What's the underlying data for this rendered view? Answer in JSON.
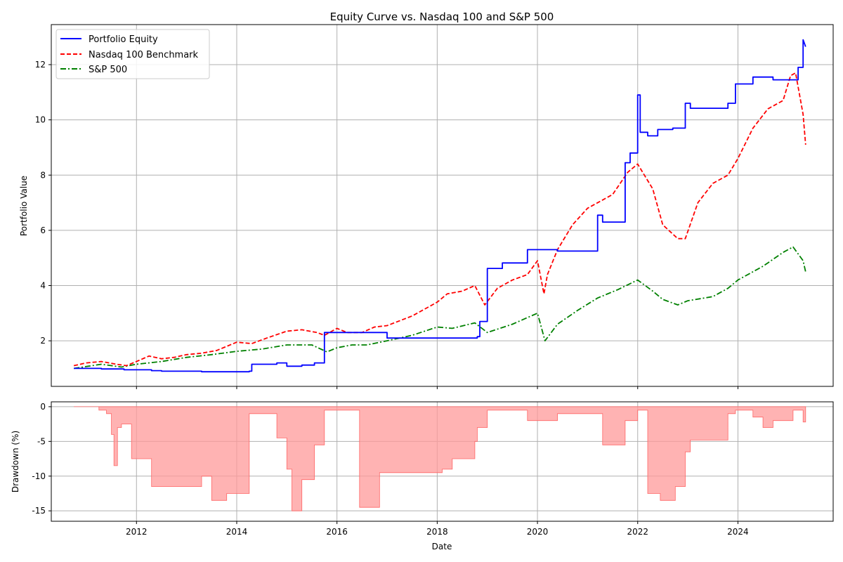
{
  "chart_data": [
    {
      "type": "line",
      "title": "Equity Curve vs. Nasdaq 100 and S&P 500",
      "xlabel": "",
      "ylabel": "Portfolio Value",
      "xlim": [
        2010.3,
        2025.9
      ],
      "ylim": [
        0.35,
        13.45
      ],
      "yticks": [
        2,
        4,
        6,
        8,
        10,
        12
      ],
      "grid": true,
      "legend_position": "top-left",
      "series": [
        {
          "name": "Portfolio Equity",
          "color": "#0000ff",
          "style": "solid",
          "x": [
            2010.75,
            2011.3,
            2011.3,
            2011.75,
            2011.75,
            2012.3,
            2012.3,
            2012.5,
            2012.5,
            2013.3,
            2013.3,
            2014.25,
            2014.25,
            2014.3,
            2014.3,
            2014.8,
            2014.8,
            2015.0,
            2015.0,
            2015.3,
            2015.3,
            2015.55,
            2015.55,
            2015.75,
            2015.75,
            2016.45,
            2016.45,
            2017.0,
            2017.0,
            2018.8,
            2018.8,
            2018.85,
            2018.85,
            2019.0,
            2019.0,
            2019.3,
            2019.3,
            2019.8,
            2019.8,
            2020.4,
            2020.4,
            2021.2,
            2021.2,
            2021.3,
            2021.3,
            2021.75,
            2021.75,
            2021.85,
            2021.85,
            2022.0,
            2022.0,
            2022.05,
            2022.05,
            2022.2,
            2022.2,
            2022.4,
            2022.4,
            2022.7,
            2022.7,
            2022.95,
            2022.95,
            2023.05,
            2023.05,
            2023.8,
            2023.8,
            2023.95,
            2023.95,
            2024.3,
            2024.3,
            2024.7,
            2024.7,
            2025.2,
            2025.2,
            2025.3,
            2025.3,
            2025.35
          ],
          "values": [
            1.0,
            1.0,
            0.98,
            0.98,
            0.95,
            0.95,
            0.92,
            0.92,
            0.9,
            0.9,
            0.88,
            0.88,
            0.9,
            0.9,
            1.15,
            1.15,
            1.2,
            1.2,
            1.08,
            1.08,
            1.12,
            1.12,
            1.2,
            1.2,
            2.3,
            2.3,
            2.3,
            2.3,
            2.1,
            2.1,
            2.15,
            2.15,
            2.7,
            2.7,
            4.62,
            4.62,
            4.82,
            4.82,
            5.3,
            5.3,
            5.25,
            5.25,
            6.55,
            6.55,
            6.3,
            6.3,
            8.45,
            8.45,
            8.8,
            8.8,
            10.9,
            10.9,
            9.55,
            9.55,
            9.42,
            9.42,
            9.65,
            9.65,
            9.7,
            9.7,
            10.6,
            10.6,
            10.42,
            10.42,
            10.6,
            10.6,
            11.3,
            11.3,
            11.55,
            11.55,
            11.45,
            11.45,
            11.9,
            11.9,
            12.9,
            12.65
          ]
        },
        {
          "name": "Nasdaq 100 Benchmark",
          "color": "#ff0000",
          "style": "dashed",
          "x": [
            2010.75,
            2011.0,
            2011.3,
            2011.6,
            2011.8,
            2012.0,
            2012.25,
            2012.5,
            2012.75,
            2013.0,
            2013.3,
            2013.6,
            2014.0,
            2014.3,
            2014.6,
            2015.0,
            2015.3,
            2015.6,
            2015.75,
            2016.0,
            2016.2,
            2016.5,
            2016.75,
            2017.0,
            2017.5,
            2018.0,
            2018.2,
            2018.5,
            2018.75,
            2018.95,
            2019.2,
            2019.5,
            2019.8,
            2020.0,
            2020.13,
            2020.2,
            2020.4,
            2020.7,
            2021.0,
            2021.2,
            2021.5,
            2021.8,
            2022.0,
            2022.3,
            2022.5,
            2022.8,
            2022.95,
            2023.2,
            2023.5,
            2023.8,
            2024.0,
            2024.3,
            2024.6,
            2024.9,
            2025.05,
            2025.15,
            2025.3,
            2025.35
          ],
          "values": [
            1.1,
            1.2,
            1.25,
            1.15,
            1.1,
            1.25,
            1.45,
            1.35,
            1.4,
            1.5,
            1.55,
            1.65,
            1.95,
            1.9,
            2.1,
            2.35,
            2.4,
            2.3,
            2.2,
            2.45,
            2.3,
            2.3,
            2.5,
            2.55,
            2.9,
            3.4,
            3.7,
            3.8,
            4.0,
            3.3,
            3.9,
            4.2,
            4.4,
            4.9,
            3.7,
            4.4,
            5.3,
            6.2,
            6.8,
            7.0,
            7.3,
            8.1,
            8.4,
            7.5,
            6.2,
            5.7,
            5.7,
            7.0,
            7.7,
            8.0,
            8.6,
            9.7,
            10.4,
            10.7,
            11.6,
            11.7,
            10.2,
            9.1
          ]
        },
        {
          "name": "S&P 500",
          "color": "#008000",
          "style": "dashdot",
          "x": [
            2010.75,
            2011.3,
            2011.7,
            2012.0,
            2012.5,
            2013.0,
            2013.5,
            2014.0,
            2014.5,
            2015.0,
            2015.5,
            2015.8,
            2016.0,
            2016.3,
            2016.6,
            2017.0,
            2017.5,
            2018.0,
            2018.3,
            2018.75,
            2019.0,
            2019.5,
            2020.0,
            2020.15,
            2020.4,
            2020.8,
            2021.2,
            2021.6,
            2022.0,
            2022.3,
            2022.5,
            2022.8,
            2023.0,
            2023.5,
            2023.8,
            2024.0,
            2024.5,
            2024.9,
            2025.1,
            2025.3,
            2025.35
          ],
          "values": [
            1.0,
            1.15,
            1.05,
            1.15,
            1.25,
            1.4,
            1.5,
            1.62,
            1.7,
            1.85,
            1.85,
            1.6,
            1.75,
            1.85,
            1.85,
            2.0,
            2.2,
            2.5,
            2.45,
            2.65,
            2.3,
            2.6,
            3.0,
            2.0,
            2.6,
            3.1,
            3.55,
            3.85,
            4.2,
            3.8,
            3.5,
            3.3,
            3.45,
            3.6,
            3.9,
            4.2,
            4.7,
            5.2,
            5.4,
            4.9,
            4.5
          ]
        }
      ]
    },
    {
      "type": "area",
      "title": "",
      "xlabel": "Date",
      "ylabel": "Drawdown (%)",
      "xlim": [
        2010.3,
        2025.9
      ],
      "ylim": [
        -16.5,
        0.7
      ],
      "yticks": [
        0,
        -5,
        -10,
        -15
      ],
      "xticks": [
        2012,
        2014,
        2016,
        2018,
        2020,
        2022,
        2024
      ],
      "grid": true,
      "series": [
        {
          "name": "Drawdown",
          "color": "#ff9999",
          "x": [
            2010.75,
            2011.25,
            2011.25,
            2011.4,
            2011.4,
            2011.5,
            2011.5,
            2011.55,
            2011.55,
            2011.62,
            2011.62,
            2011.7,
            2011.7,
            2011.78,
            2011.78,
            2011.9,
            2011.9,
            2012.3,
            2012.3,
            2012.5,
            2012.5,
            2013.3,
            2013.3,
            2013.5,
            2013.5,
            2013.8,
            2013.8,
            2014.25,
            2014.25,
            2014.3,
            2014.3,
            2014.8,
            2014.8,
            2015.0,
            2015.0,
            2015.1,
            2015.1,
            2015.3,
            2015.3,
            2015.55,
            2015.55,
            2015.75,
            2015.75,
            2016.45,
            2016.45,
            2016.85,
            2016.85,
            2018.1,
            2018.1,
            2018.3,
            2018.3,
            2018.75,
            2018.75,
            2018.8,
            2018.8,
            2019.0,
            2019.0,
            2019.8,
            2019.8,
            2020.4,
            2020.4,
            2021.0,
            2021.0,
            2021.3,
            2021.3,
            2021.75,
            2021.75,
            2022.0,
            2022.0,
            2022.2,
            2022.2,
            2022.45,
            2022.45,
            2022.75,
            2022.75,
            2022.95,
            2022.95,
            2023.05,
            2023.05,
            2023.8,
            2023.8,
            2023.95,
            2023.95,
            2024.3,
            2024.3,
            2024.5,
            2024.5,
            2024.7,
            2024.7,
            2025.1,
            2025.1,
            2025.3,
            2025.3,
            2025.35
          ],
          "values": [
            0,
            0,
            -0.5,
            -0.5,
            -1,
            -1,
            -4,
            -4,
            -8.5,
            -8.5,
            -3,
            -3,
            -2.5,
            -2.5,
            -2.5,
            -2.5,
            -7.5,
            -7.5,
            -11.5,
            -11.5,
            -11.5,
            -11.5,
            -10,
            -10,
            -13.5,
            -13.5,
            -12.5,
            -12.5,
            -1,
            -1,
            -1,
            -1,
            -4.5,
            -4.5,
            -9,
            -9,
            -15,
            -15,
            -10.5,
            -10.5,
            -5.5,
            -5.5,
            -0.5,
            -0.5,
            -14.5,
            -14.5,
            -9.5,
            -9.5,
            -9,
            -9,
            -7.5,
            -7.5,
            -5,
            -5,
            -3,
            -3,
            -0.5,
            -0.5,
            -2,
            -2,
            -1,
            -1,
            -1,
            -1,
            -5.5,
            -5.5,
            -2,
            -2,
            -0.5,
            -0.5,
            -12.5,
            -12.5,
            -13.5,
            -13.5,
            -11.5,
            -11.5,
            -6.5,
            -6.5,
            -4.8,
            -4.8,
            -1,
            -1,
            -0.5,
            -0.5,
            -1.5,
            -1.5,
            -3,
            -3,
            -2,
            -2,
            -0.5,
            -0.5,
            -2.2,
            -2.2
          ]
        }
      ]
    }
  ],
  "legend": [
    {
      "label": "Portfolio Equity",
      "color": "#0000ff"
    },
    {
      "label": "Nasdaq 100 Benchmark",
      "color": "#ff0000"
    },
    {
      "label": "S&P 500",
      "color": "#008000"
    }
  ]
}
